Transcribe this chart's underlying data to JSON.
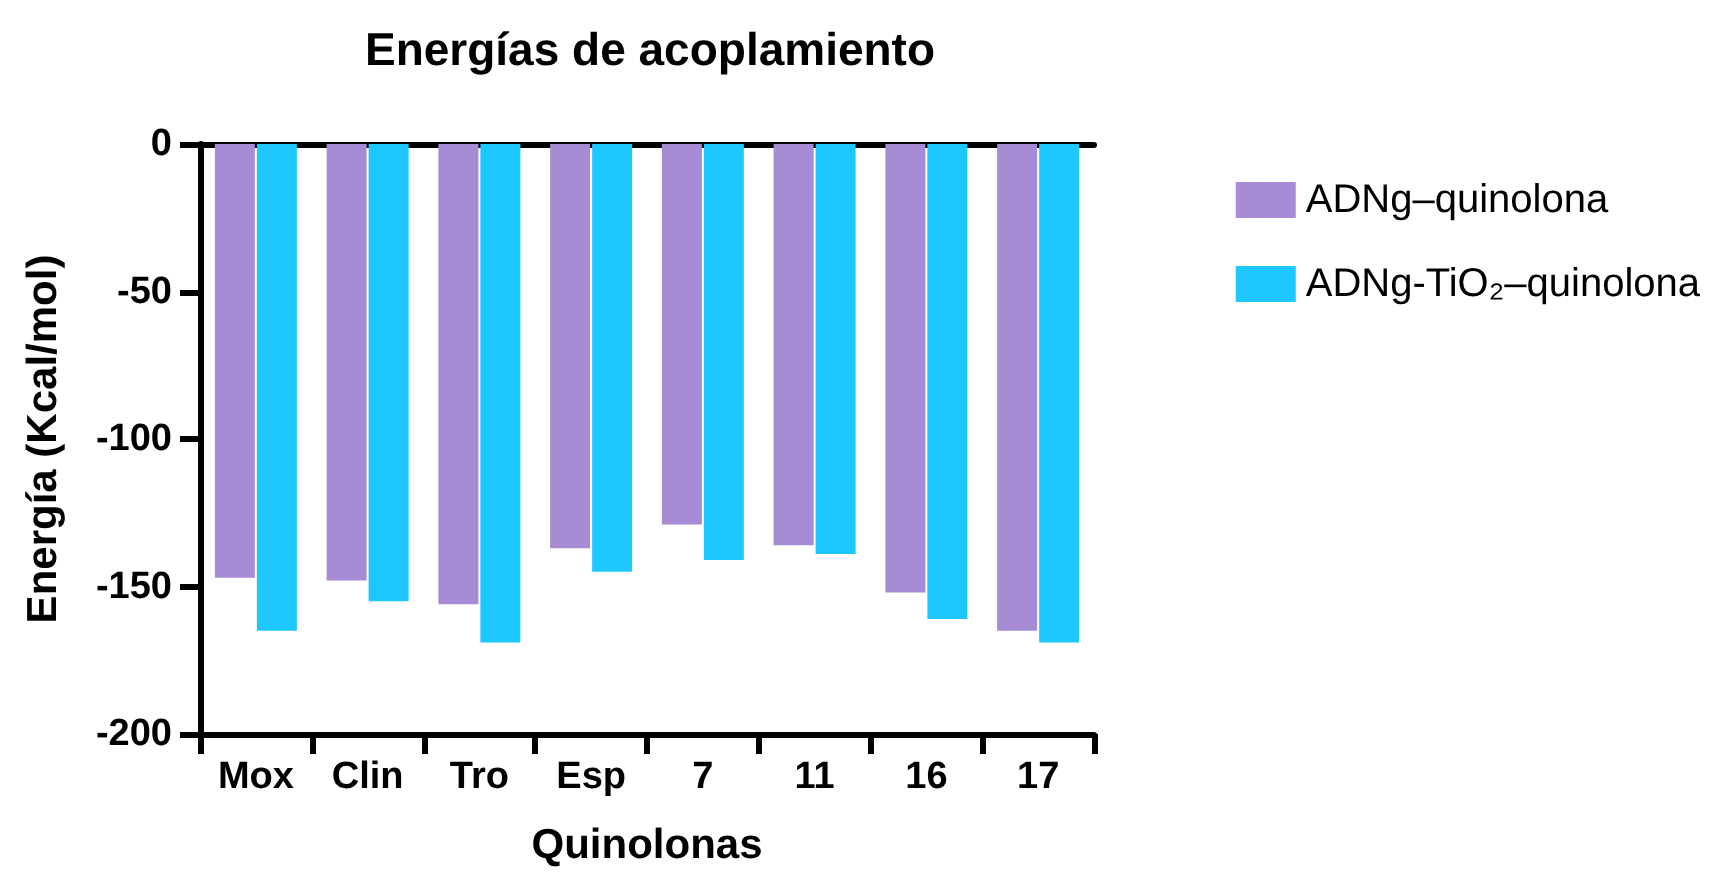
{
  "chart_data": {
    "type": "bar",
    "title": "Energías de acoplamiento",
    "xlabel": "Quinolonas",
    "ylabel": "Energía (Kcal/mol)",
    "categories": [
      "Mox",
      "Clin",
      "Tro",
      "Esp",
      "7",
      "11",
      "16",
      "17"
    ],
    "series": [
      {
        "name": "ADNg–quinolona",
        "color": "#a78bd4",
        "values": [
          -147,
          -148,
          -156,
          -137,
          -129,
          -136,
          -152,
          -165
        ]
      },
      {
        "name": "ADNg-TiO₂–quinolona",
        "color": "#1ec8ff",
        "values": [
          -165,
          -155,
          -169,
          -145,
          -141,
          -139,
          -161,
          -169
        ]
      }
    ],
    "ylim": [
      -200,
      0
    ],
    "yticks": [
      -200,
      -150,
      -100,
      -50,
      0
    ],
    "grid": false,
    "legend": "right"
  }
}
